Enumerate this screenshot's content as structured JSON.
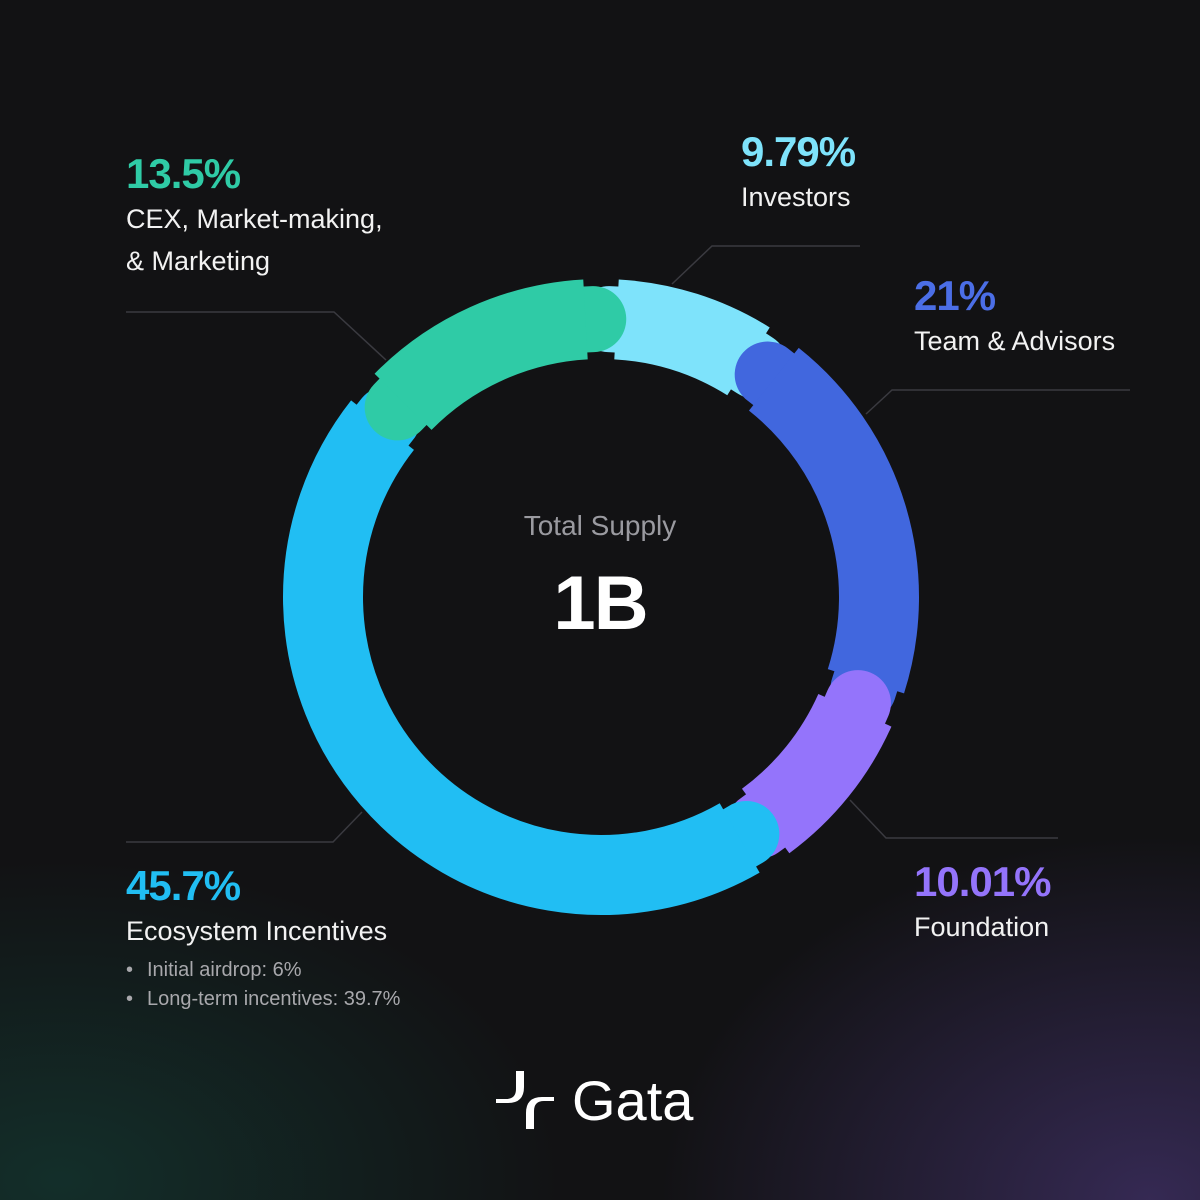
{
  "chart_data": {
    "type": "pie",
    "center": {
      "label": "Total Supply",
      "value": "1B"
    },
    "slices": [
      {
        "name": "Investors",
        "value": 9.79,
        "label": "9.79%",
        "color": "#7ee3fb"
      },
      {
        "name": "Team & Advisors",
        "value": 21,
        "label": "21%",
        "color": "#4167de"
      },
      {
        "name": "Foundation",
        "value": 10.01,
        "label": "10.01%",
        "color": "#9474fb"
      },
      {
        "name": "Ecosystem Incentives",
        "value": 45.7,
        "label": "45.7%",
        "color": "#21bef3",
        "details": [
          "Initial airdrop: 6%",
          "Long-term incentives: 39.7%"
        ]
      },
      {
        "name_lines": [
          "CEX, Market-making,",
          "& Marketing"
        ],
        "value": 13.5,
        "label": "13.5%",
        "color": "#2fcba6"
      }
    ]
  },
  "brand": {
    "name": "Gata"
  }
}
